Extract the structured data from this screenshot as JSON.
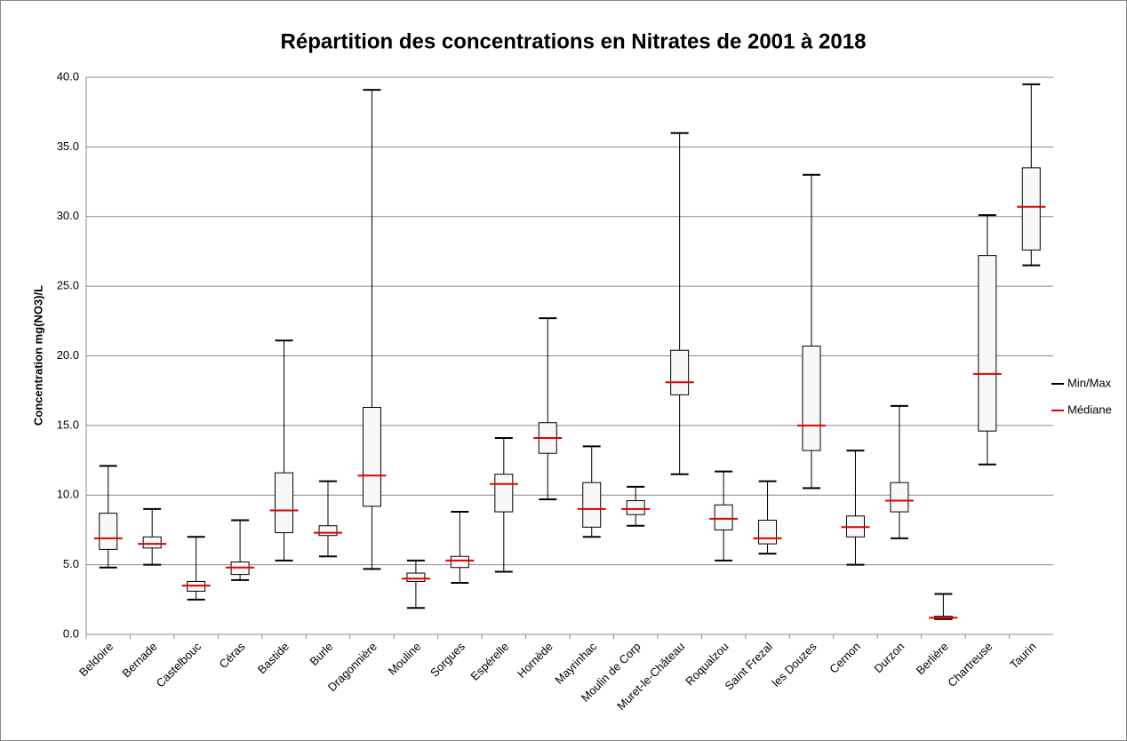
{
  "chart_data": {
    "type": "box",
    "title": "Répartition des concentrations en Nitrates de 2001 à 2018",
    "y_label": "Concentration mg(NO3)/L",
    "categories": [
      "Beldoire",
      "Bernade",
      "Castelbouc",
      "Céras",
      "Bastide",
      "Burle",
      "Dragonnière",
      "Mouline",
      "Sorgues",
      "Espérelle",
      "Hornède",
      "Mayrinhac",
      "Moulin de Corp",
      "Muret-le-Château",
      "Roqualzou",
      "Saint Frezal",
      "les Douzes",
      "Cernon",
      "Durzon",
      "Berlière",
      "Chartreuse",
      "Taurin"
    ],
    "boxes": [
      {
        "min": 4.8,
        "q1": 6.1,
        "median": 6.9,
        "q3": 8.7,
        "max": 12.1
      },
      {
        "min": 5.0,
        "q1": 6.2,
        "median": 6.5,
        "q3": 7.0,
        "max": 9.0
      },
      {
        "min": 2.5,
        "q1": 3.1,
        "median": 3.5,
        "q3": 3.8,
        "max": 7.0
      },
      {
        "min": 3.9,
        "q1": 4.3,
        "median": 4.8,
        "q3": 5.2,
        "max": 8.2
      },
      {
        "min": 5.3,
        "q1": 7.3,
        "median": 8.9,
        "q3": 11.6,
        "max": 21.1
      },
      {
        "min": 5.6,
        "q1": 7.1,
        "median": 7.3,
        "q3": 7.8,
        "max": 11.0
      },
      {
        "min": 4.7,
        "q1": 9.2,
        "median": 11.4,
        "q3": 16.3,
        "max": 39.1
      },
      {
        "min": 1.9,
        "q1": 3.8,
        "median": 4.0,
        "q3": 4.4,
        "max": 5.3
      },
      {
        "min": 3.7,
        "q1": 4.8,
        "median": 5.3,
        "q3": 5.6,
        "max": 8.8
      },
      {
        "min": 4.5,
        "q1": 8.8,
        "median": 10.8,
        "q3": 11.5,
        "max": 14.1
      },
      {
        "min": 9.7,
        "q1": 13.0,
        "median": 14.1,
        "q3": 15.2,
        "max": 22.7
      },
      {
        "min": 7.0,
        "q1": 7.7,
        "median": 9.0,
        "q3": 10.9,
        "max": 13.5
      },
      {
        "min": 7.8,
        "q1": 8.6,
        "median": 9.0,
        "q3": 9.6,
        "max": 10.6
      },
      {
        "min": 11.5,
        "q1": 17.2,
        "median": 18.1,
        "q3": 20.4,
        "max": 36.0
      },
      {
        "min": 5.3,
        "q1": 7.5,
        "median": 8.3,
        "q3": 9.3,
        "max": 11.7
      },
      {
        "min": 5.8,
        "q1": 6.5,
        "median": 6.9,
        "q3": 8.2,
        "max": 11.0
      },
      {
        "min": 10.5,
        "q1": 13.2,
        "median": 15.0,
        "q3": 20.7,
        "max": 33.0
      },
      {
        "min": 5.0,
        "q1": 7.0,
        "median": 7.7,
        "q3": 8.5,
        "max": 13.2
      },
      {
        "min": 6.9,
        "q1": 8.8,
        "median": 9.6,
        "q3": 10.9,
        "max": 16.4
      },
      {
        "min": 1.1,
        "q1": 1.1,
        "median": 1.2,
        "q3": 1.3,
        "max": 2.9
      },
      {
        "min": 12.2,
        "q1": 14.6,
        "median": 18.7,
        "q3": 27.2,
        "max": 30.1
      },
      {
        "min": 26.5,
        "q1": 27.6,
        "median": 30.7,
        "q3": 33.5,
        "max": 39.5
      }
    ],
    "legend": [
      {
        "name": "Min/Max",
        "color": "#000000"
      },
      {
        "name": "Médiane",
        "color": "#e00000"
      }
    ],
    "box_fill": "#f8f8f8",
    "ylim": [
      0,
      40
    ],
    "yticks": [
      {
        "value": 0,
        "label": "0.0"
      },
      {
        "value": 5,
        "label": "5.0"
      },
      {
        "value": 10,
        "label": "10.0"
      },
      {
        "value": 15,
        "label": "15.0"
      },
      {
        "value": 20,
        "label": "20.0"
      },
      {
        "value": 25,
        "label": "25.0"
      },
      {
        "value": 30,
        "label": "30.0"
      },
      {
        "value": 35,
        "label": "35.0"
      },
      {
        "value": 40,
        "label": "40.0"
      }
    ],
    "grid": true,
    "legend_position": "right"
  }
}
